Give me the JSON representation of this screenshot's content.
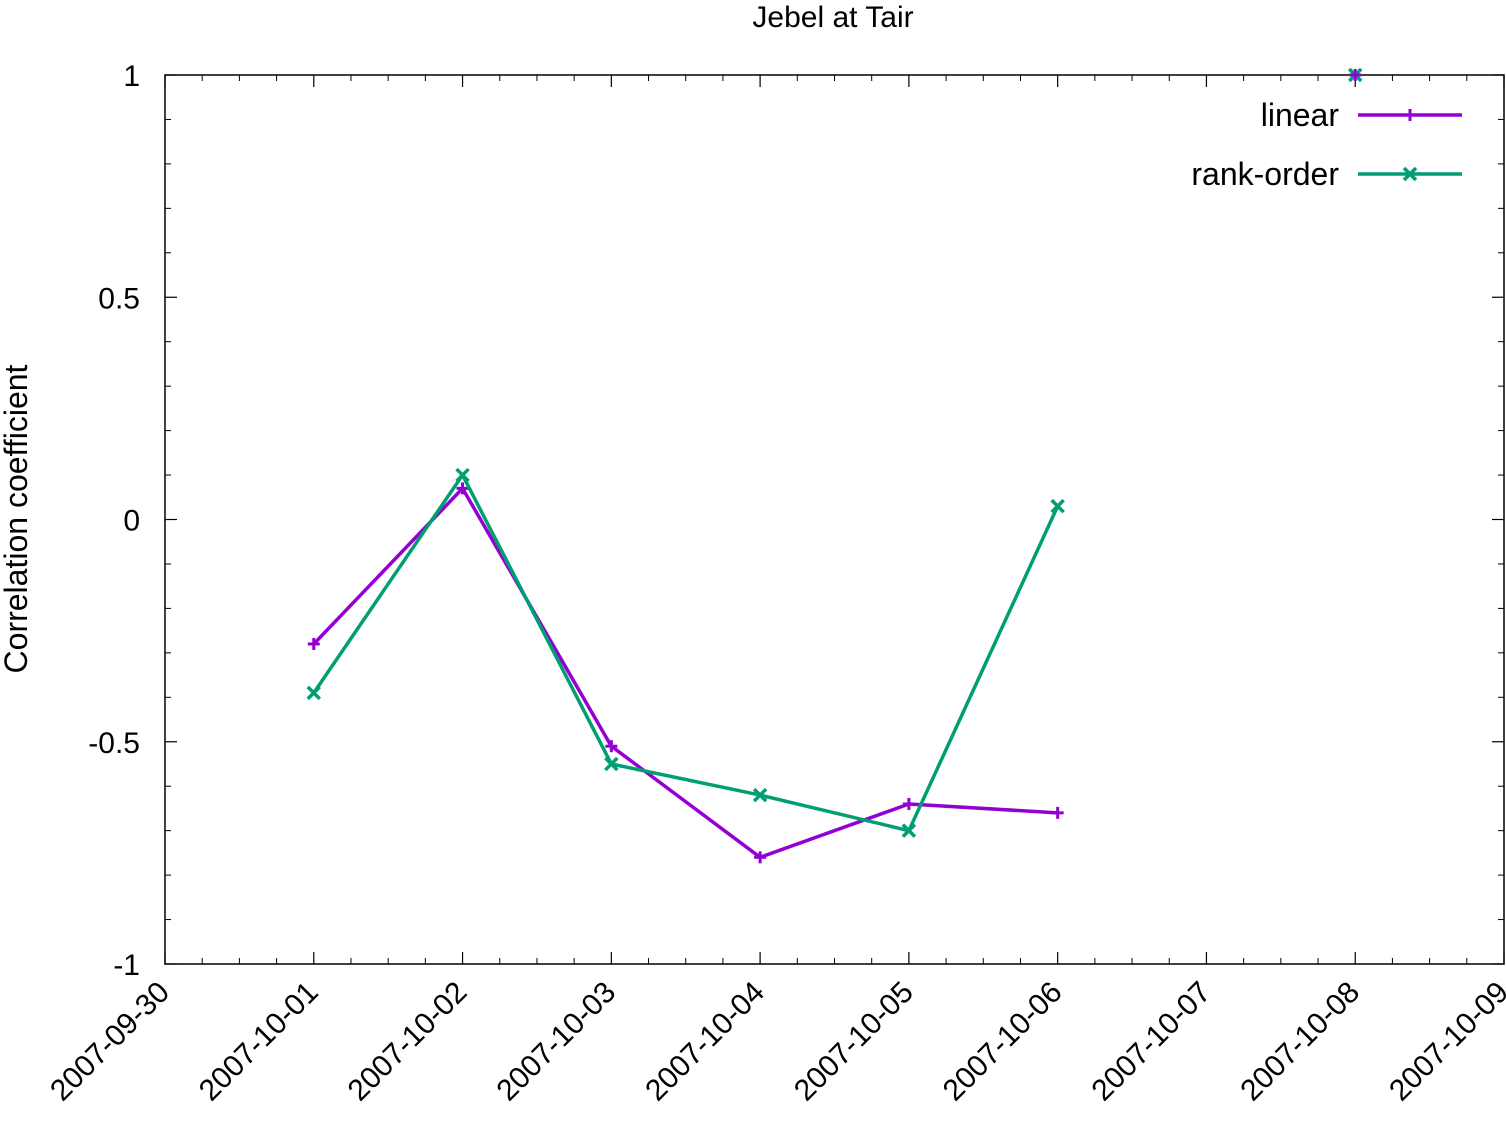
{
  "chart_data": {
    "type": "line",
    "title": "Jebel at Tair",
    "xlabel": "",
    "ylabel": "Correlation coefficient",
    "x_type": "date",
    "xlim": [
      "2007-09-30",
      "2007-10-09"
    ],
    "ylim": [
      -1,
      1
    ],
    "x_ticks": [
      "2007-09-30",
      "2007-10-01",
      "2007-10-02",
      "2007-10-03",
      "2007-10-04",
      "2007-10-05",
      "2007-10-06",
      "2007-10-07",
      "2007-10-08",
      "2007-10-09"
    ],
    "y_ticks": [
      {
        "value": 1,
        "label": "1"
      },
      {
        "value": 0.5,
        "label": "0.5"
      },
      {
        "value": 0,
        "label": "0"
      },
      {
        "value": -0.5,
        "label": "-0.5"
      },
      {
        "value": -1,
        "label": "-1"
      }
    ],
    "grid": false,
    "legend_position": "top-right",
    "series": [
      {
        "name": "linear",
        "color": "#9400d3",
        "marker": "plus",
        "x": [
          "2007-10-01",
          "2007-10-02",
          "2007-10-03",
          "2007-10-04",
          "2007-10-05",
          "2007-10-06"
        ],
        "values": [
          -0.28,
          0.07,
          -0.51,
          -0.76,
          -0.64,
          -0.66
        ]
      },
      {
        "name": "rank-order",
        "color": "#009e73",
        "marker": "cross",
        "x": [
          "2007-10-01",
          "2007-10-02",
          "2007-10-03",
          "2007-10-04",
          "2007-10-05",
          "2007-10-06"
        ],
        "values": [
          -0.39,
          0.1,
          -0.55,
          -0.62,
          -0.7,
          0.03
        ]
      }
    ],
    "extra_points": [
      {
        "x": "2007-10-08",
        "y": 1,
        "color": "#009e73",
        "marker": "cross"
      },
      {
        "x": "2007-10-08",
        "y": 1,
        "color": "#9400d3",
        "marker": "plus"
      }
    ]
  }
}
